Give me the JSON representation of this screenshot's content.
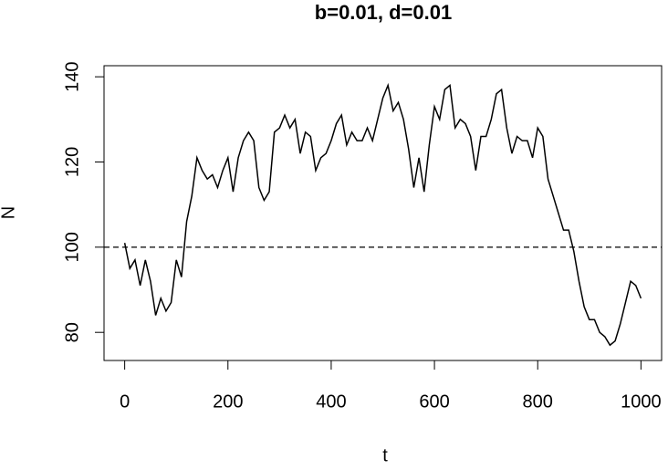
{
  "chart_data": {
    "type": "line",
    "title": "b=0.01, d=0.01",
    "x_label": "t",
    "y_label": "N",
    "x": [
      0,
      10,
      20,
      30,
      40,
      50,
      60,
      70,
      80,
      90,
      100,
      110,
      120,
      130,
      140,
      150,
      160,
      170,
      180,
      190,
      200,
      210,
      220,
      230,
      240,
      250,
      260,
      270,
      280,
      290,
      300,
      310,
      320,
      330,
      340,
      350,
      360,
      370,
      380,
      390,
      400,
      410,
      420,
      430,
      440,
      450,
      460,
      470,
      480,
      490,
      500,
      510,
      520,
      530,
      540,
      550,
      560,
      570,
      580,
      590,
      600,
      610,
      620,
      630,
      640,
      650,
      660,
      670,
      680,
      690,
      700,
      710,
      720,
      730,
      740,
      750,
      760,
      770,
      780,
      790,
      800,
      810,
      820,
      830,
      840,
      850,
      860,
      870,
      880,
      890,
      900,
      910,
      920,
      930,
      940,
      950,
      960,
      970,
      980,
      990,
      1000
    ],
    "series": [
      {
        "color": "#000000",
        "values": [
          101,
          95,
          97,
          91,
          97,
          92,
          84,
          88,
          85,
          87,
          97,
          93,
          106,
          112,
          121,
          118,
          116,
          117,
          114,
          118,
          121,
          113,
          121,
          125,
          127,
          125,
          114,
          111,
          113,
          127,
          128,
          131,
          128,
          130,
          122,
          127,
          126,
          118,
          121,
          122,
          125,
          129,
          131,
          124,
          127,
          125,
          125,
          128,
          125,
          130,
          135,
          138,
          132,
          134,
          130,
          123,
          114,
          121,
          113,
          124,
          133,
          130,
          137,
          138,
          128,
          130,
          129,
          126,
          118,
          126,
          126,
          130,
          136,
          137,
          128,
          122,
          126,
          125,
          125,
          121,
          128,
          126,
          116,
          112,
          108,
          104,
          104,
          99,
          92,
          86,
          83,
          83,
          80,
          79,
          77,
          78,
          82,
          87,
          92,
          91,
          88
        ]
      }
    ],
    "hline": 100,
    "xlim": [
      -40,
      1040
    ],
    "ylim": [
      73.4,
      142.6
    ],
    "xticks": [
      0,
      200,
      400,
      600,
      800,
      1000
    ],
    "yticks": [
      80,
      100,
      120,
      140
    ]
  }
}
